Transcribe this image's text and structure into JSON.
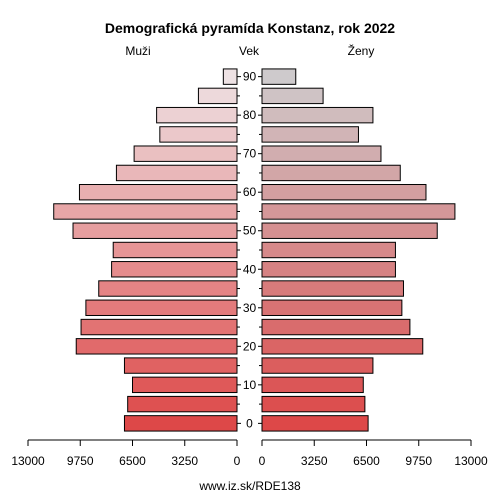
{
  "chart_data": {
    "type": "bar",
    "orientation": "population-pyramid",
    "title": "Demografická pyramída Konstanz, rok 2022",
    "left_label": "Muži",
    "center_label": "Vek",
    "right_label": "Ženy",
    "footer": "www.iz.sk/RDE138",
    "age_ticks": [
      "0",
      "10",
      "20",
      "30",
      "40",
      "50",
      "60",
      "70",
      "80",
      "90"
    ],
    "x_ticks_left": [
      "13000",
      "9750",
      "6500",
      "3250",
      "0"
    ],
    "x_ticks_right": [
      "0",
      "3250",
      "6500",
      "9750",
      "13000"
    ],
    "xlim": [
      0,
      13000
    ],
    "age_groups": [
      "0-4",
      "5-9",
      "10-14",
      "15-19",
      "20-24",
      "25-29",
      "30-34",
      "35-39",
      "40-44",
      "45-49",
      "50-54",
      "55-59",
      "60-64",
      "65-69",
      "70-74",
      "75-79",
      "80-84",
      "85-89",
      "90+"
    ],
    "series": [
      {
        "name": "Muži",
        "values": [
          7000,
          6800,
          6500,
          7000,
          10000,
          9700,
          9400,
          8600,
          7800,
          7700,
          10200,
          11400,
          9800,
          7500,
          6400,
          4800,
          5000,
          2400,
          850
        ]
      },
      {
        "name": "Ženy",
        "values": [
          6600,
          6400,
          6300,
          6900,
          10000,
          9200,
          8700,
          8800,
          8300,
          8300,
          10900,
          12000,
          10200,
          8600,
          7400,
          6000,
          6900,
          3800,
          2100
        ]
      }
    ]
  }
}
